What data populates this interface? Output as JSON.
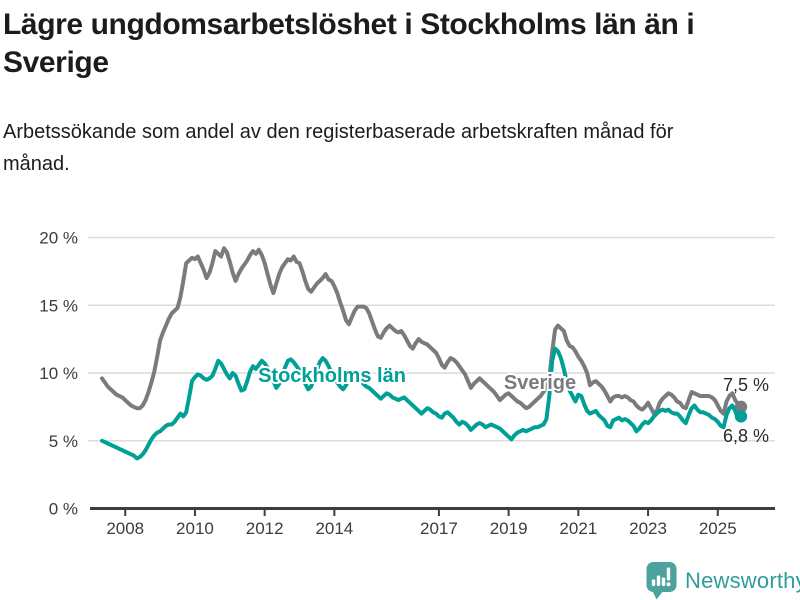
{
  "header": {
    "title": "Lägre ungdomsarbetslöshet i Stockholms län än i Sverige",
    "subtitle": "Arbetssökande som andel av den registerbaserade arbetskraften månad för månad."
  },
  "footer": {
    "brand": "Newsworthy",
    "logo_icon": "newsworthy-speech-bubble-bar-chart-icon"
  },
  "colors": {
    "sverige": "#7b7b7e",
    "stockholm": "#00a096",
    "grid": "#dcdcdc",
    "axis": "#3c3c3c",
    "tick_text": "#3d3d3d",
    "value_text": "#2b2b2b",
    "logo": "#4ba29e",
    "logo_text": "#2e9e9a"
  },
  "chart_data": {
    "type": "line",
    "title": "Lägre ungdomsarbetslöshet i Stockholms län än i Sverige",
    "subtitle": "Arbetssökande som andel av den registerbaserade arbetskraften månad för månad.",
    "frequency": "monthly",
    "x_start": "2007-05",
    "x_end": "2025-09",
    "grid": "horizontal",
    "legend_position": "inline-labels",
    "ylim": [
      0,
      21
    ],
    "yticks": [
      0,
      5,
      10,
      15,
      20
    ],
    "ytick_suffix": " %",
    "xticks": [
      2008,
      2010,
      2012,
      2014,
      2017,
      2019,
      2021,
      2023,
      2025
    ],
    "series": [
      {
        "name": "Sverige",
        "color": "#7b7b7e",
        "end_label": "7,5 %",
        "end_value": 7.5,
        "values": [
          9.6,
          9.3,
          9.0,
          8.8,
          8.6,
          8.4,
          8.3,
          8.2,
          8.0,
          7.8,
          7.6,
          7.5,
          7.4,
          7.4,
          7.6,
          8.0,
          8.6,
          9.3,
          10.1,
          11.2,
          12.4,
          13.0,
          13.5,
          14.0,
          14.4,
          14.6,
          14.8,
          15.6,
          16.8,
          18.1,
          18.3,
          18.5,
          18.4,
          18.6,
          18.1,
          17.6,
          17.0,
          17.4,
          18.1,
          19.0,
          18.8,
          18.6,
          19.2,
          18.9,
          18.2,
          17.4,
          16.8,
          17.3,
          17.7,
          18.0,
          18.3,
          18.7,
          19.0,
          18.8,
          19.1,
          18.7,
          18.1,
          17.3,
          16.5,
          15.9,
          16.6,
          17.3,
          17.8,
          18.1,
          18.4,
          18.3,
          18.6,
          18.2,
          18.1,
          17.5,
          16.8,
          16.2,
          16.0,
          16.3,
          16.6,
          16.8,
          17.0,
          17.3,
          16.9,
          16.8,
          16.4,
          15.9,
          15.2,
          14.6,
          13.9,
          13.6,
          14.1,
          14.6,
          14.9,
          14.9,
          14.9,
          14.8,
          14.4,
          13.8,
          13.2,
          12.7,
          12.6,
          13.0,
          13.3,
          13.5,
          13.3,
          13.1,
          13.0,
          13.1,
          12.8,
          12.4,
          12.0,
          11.8,
          12.2,
          12.5,
          12.3,
          12.2,
          12.1,
          11.9,
          11.7,
          11.5,
          11.1,
          10.6,
          10.4,
          10.8,
          11.1,
          11.0,
          10.8,
          10.5,
          10.2,
          9.9,
          9.4,
          8.9,
          9.2,
          9.4,
          9.6,
          9.4,
          9.2,
          9.0,
          8.8,
          8.6,
          8.3,
          8.0,
          8.2,
          8.4,
          8.5,
          8.3,
          8.1,
          7.9,
          7.8,
          7.6,
          7.4,
          7.5,
          7.7,
          7.9,
          8.1,
          8.3,
          8.6,
          9.0,
          9.6,
          11.6,
          13.2,
          13.5,
          13.3,
          13.1,
          12.4,
          12.0,
          11.9,
          11.6,
          11.2,
          10.9,
          10.5,
          10.0,
          9.1,
          9.3,
          9.4,
          9.2,
          9.0,
          8.7,
          8.3,
          7.9,
          8.2,
          8.3,
          8.3,
          8.2,
          8.3,
          8.2,
          8.0,
          7.9,
          7.6,
          7.4,
          7.3,
          7.5,
          7.8,
          7.4,
          7.0,
          7.2,
          7.8,
          8.1,
          8.3,
          8.5,
          8.4,
          8.2,
          7.9,
          7.8,
          7.5,
          7.4,
          8.0,
          8.6,
          8.5,
          8.4,
          8.3,
          8.3,
          8.3,
          8.3,
          8.2,
          8.0,
          7.6,
          7.2,
          7.0,
          7.9,
          8.3,
          8.5,
          8.0,
          7.7,
          7.5
        ]
      },
      {
        "name": "Stockholms län",
        "color": "#00a096",
        "end_label": "6,8 %",
        "end_value": 6.8,
        "values": [
          5.0,
          4.9,
          4.8,
          4.7,
          4.6,
          4.5,
          4.4,
          4.3,
          4.2,
          4.1,
          4.0,
          3.9,
          3.7,
          3.8,
          4.0,
          4.3,
          4.7,
          5.1,
          5.4,
          5.6,
          5.7,
          5.9,
          6.1,
          6.2,
          6.2,
          6.4,
          6.7,
          7.0,
          6.8,
          7.1,
          8.2,
          9.4,
          9.7,
          9.9,
          9.8,
          9.6,
          9.5,
          9.6,
          9.8,
          10.3,
          10.9,
          10.7,
          10.3,
          9.9,
          9.6,
          10.0,
          9.8,
          9.2,
          8.7,
          8.8,
          9.4,
          10.1,
          10.5,
          10.3,
          10.6,
          10.9,
          10.7,
          10.4,
          9.9,
          9.4,
          8.9,
          9.2,
          9.8,
          10.4,
          10.9,
          11.0,
          10.8,
          10.5,
          10.2,
          9.7,
          9.2,
          8.8,
          9.0,
          9.6,
          10.2,
          10.8,
          11.1,
          10.9,
          10.5,
          10.0,
          9.6,
          9.3,
          9.0,
          8.8,
          9.1,
          9.5,
          9.9,
          10.1,
          9.8,
          9.5,
          9.2,
          9.0,
          8.9,
          8.7,
          8.5,
          8.3,
          8.1,
          8.3,
          8.5,
          8.4,
          8.2,
          8.1,
          8.0,
          8.1,
          8.2,
          8.0,
          7.8,
          7.6,
          7.4,
          7.2,
          7.0,
          7.2,
          7.4,
          7.3,
          7.1,
          7.0,
          6.8,
          6.7,
          7.0,
          7.1,
          6.9,
          6.7,
          6.4,
          6.2,
          6.4,
          6.3,
          6.1,
          5.8,
          6.0,
          6.2,
          6.3,
          6.2,
          6.0,
          6.1,
          6.2,
          6.1,
          6.0,
          5.9,
          5.7,
          5.5,
          5.3,
          5.1,
          5.4,
          5.6,
          5.7,
          5.8,
          5.7,
          5.8,
          5.9,
          6.0,
          6.0,
          6.1,
          6.2,
          6.6,
          8.3,
          10.9,
          11.8,
          11.6,
          11.1,
          10.3,
          9.4,
          8.7,
          8.3,
          7.9,
          8.4,
          8.3,
          7.7,
          7.2,
          7.0,
          7.1,
          7.2,
          6.9,
          6.7,
          6.5,
          6.1,
          6.0,
          6.5,
          6.6,
          6.7,
          6.5,
          6.6,
          6.5,
          6.3,
          6.1,
          5.7,
          5.9,
          6.2,
          6.4,
          6.3,
          6.5,
          6.8,
          7.0,
          7.2,
          7.3,
          7.2,
          7.3,
          7.1,
          7.0,
          7.0,
          6.8,
          6.5,
          6.3,
          6.9,
          7.4,
          7.6,
          7.3,
          7.1,
          7.1,
          7.0,
          6.9,
          6.7,
          6.6,
          6.4,
          6.1,
          6.0,
          6.9,
          7.4,
          7.6,
          7.2,
          6.6,
          6.8
        ]
      }
    ]
  }
}
